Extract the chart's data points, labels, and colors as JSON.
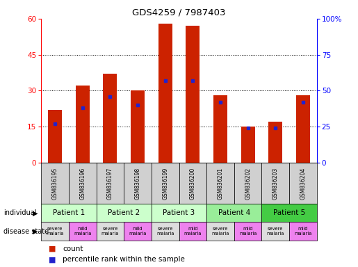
{
  "title": "GDS4259 / 7987403",
  "samples": [
    "GSM836195",
    "GSM836196",
    "GSM836197",
    "GSM836198",
    "GSM836199",
    "GSM836200",
    "GSM836201",
    "GSM836202",
    "GSM836203",
    "GSM836204"
  ],
  "counts": [
    22,
    32,
    37,
    30,
    58,
    57,
    28,
    15,
    17,
    28
  ],
  "percentile_ranks": [
    27,
    38,
    46,
    40,
    57,
    57,
    42,
    24,
    24,
    42
  ],
  "patients": [
    {
      "label": "Patient 1",
      "span": [
        0,
        2
      ],
      "color": "#ccffcc"
    },
    {
      "label": "Patient 2",
      "span": [
        2,
        4
      ],
      "color": "#ccffcc"
    },
    {
      "label": "Patient 3",
      "span": [
        4,
        6
      ],
      "color": "#ccffcc"
    },
    {
      "label": "Patient 4",
      "span": [
        6,
        8
      ],
      "color": "#99ee99"
    },
    {
      "label": "Patient 5",
      "span": [
        8,
        10
      ],
      "color": "#44cc44"
    }
  ],
  "disease_states": [
    {
      "label": "severe\nmalaria",
      "color": "#dddddd"
    },
    {
      "label": "mild\nmalaria",
      "color": "#ee82ee"
    },
    {
      "label": "severe\nmalaria",
      "color": "#dddddd"
    },
    {
      "label": "mild\nmalaria",
      "color": "#ee82ee"
    },
    {
      "label": "severe\nmalaria",
      "color": "#dddddd"
    },
    {
      "label": "mild\nmalaria",
      "color": "#ee82ee"
    },
    {
      "label": "severe\nmalaria",
      "color": "#dddddd"
    },
    {
      "label": "mild\nmalaria",
      "color": "#ee82ee"
    },
    {
      "label": "severe\nmalaria",
      "color": "#dddddd"
    },
    {
      "label": "mild\nmalaria",
      "color": "#ee82ee"
    }
  ],
  "bar_color": "#cc2200",
  "percentile_color": "#2222cc",
  "ylim_left": [
    0,
    60
  ],
  "ylim_right": [
    0,
    100
  ],
  "yticks_left": [
    0,
    15,
    30,
    45,
    60
  ],
  "yticks_right": [
    0,
    25,
    50,
    75,
    100
  ],
  "yticklabels_right": [
    "0",
    "25",
    "50",
    "75",
    "100%"
  ],
  "grid_lines": [
    15,
    30,
    45
  ],
  "sample_box_color": "#d0d0d0",
  "bar_width": 0.5
}
